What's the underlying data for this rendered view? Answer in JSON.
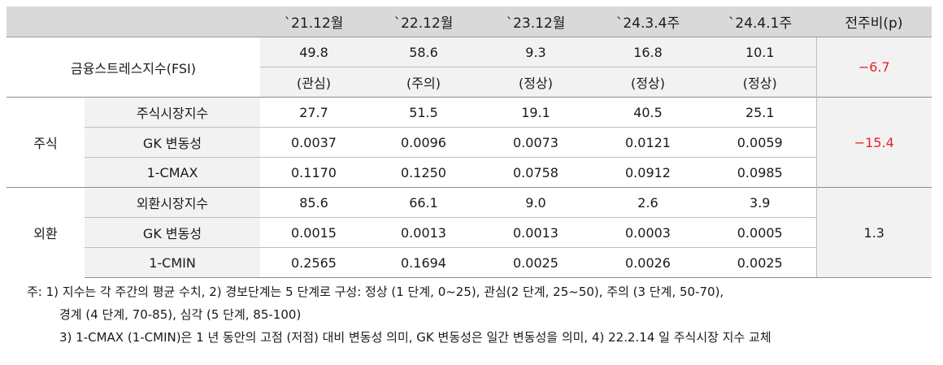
{
  "header": {
    "col0": "",
    "col1": "",
    "periods": [
      "`21.12월",
      "`22.12월",
      "`23.12월",
      "`24.3.4주",
      "`24.4.1주"
    ],
    "change": "전주비(p)"
  },
  "fsi": {
    "label": "금융스트레스지수(FSI)",
    "values": [
      "49.8",
      "58.6",
      "9.3",
      "16.8",
      "10.1"
    ],
    "stages": [
      "(관심)",
      "(주의)",
      "(정상)",
      "(정상)",
      "(정상)"
    ],
    "change": "−6.7"
  },
  "stock": {
    "group": "주식",
    "change": "−15.4",
    "rows": [
      {
        "label": "주식시장지수",
        "values": [
          "27.7",
          "51.5",
          "19.1",
          "40.5",
          "25.1"
        ]
      },
      {
        "label": "GK 변동성",
        "values": [
          "0.0037",
          "0.0096",
          "0.0073",
          "0.0121",
          "0.0059"
        ]
      },
      {
        "label": "1-CMAX",
        "values": [
          "0.1170",
          "0.1250",
          "0.0758",
          "0.0912",
          "0.0985"
        ]
      }
    ]
  },
  "fx": {
    "group": "외환",
    "change": "1.3",
    "rows": [
      {
        "label": "외환시장지수",
        "values": [
          "85.6",
          "66.1",
          "9.0",
          "2.6",
          "3.9"
        ]
      },
      {
        "label": "GK 변동성",
        "values": [
          "0.0015",
          "0.0013",
          "0.0013",
          "0.0003",
          "0.0005"
        ]
      },
      {
        "label": "1-CMIN",
        "values": [
          "0.2565",
          "0.1694",
          "0.0025",
          "0.0026",
          "0.0025"
        ]
      }
    ]
  },
  "notes": {
    "line1": "주: 1) 지수는 각 주간의 평균 수치, 2) 경보단계는 5 단계로 구성: 정상 (1 단계, 0~25), 관심(2 단계, 25~50), 주의 (3 단계, 50-70),",
    "line2": "경계 (4 단계, 70-85), 심각 (5 단계, 85-100)",
    "line3": "3) 1-CMAX (1-CMIN)은 1 년 동안의 고점 (저점) 대비 변동성 의미, GK 변동성은 일간 변동성을 의미, 4) 22.2.14 일 주식시장 지수 교체"
  }
}
